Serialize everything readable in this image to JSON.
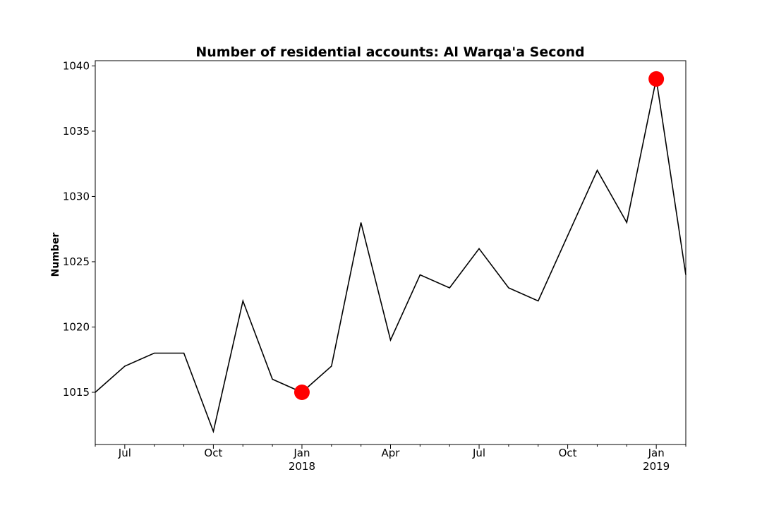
{
  "chart_data": {
    "type": "line",
    "title": "Number of residential accounts: Al Warqa'a Second",
    "xlabel": "",
    "ylabel": "Number",
    "x": [
      "2017-06",
      "2017-07",
      "2017-08",
      "2017-09",
      "2017-10",
      "2017-11",
      "2017-12",
      "2018-01",
      "2018-02",
      "2018-03",
      "2018-04",
      "2018-05",
      "2018-06",
      "2018-07",
      "2018-08",
      "2018-09",
      "2018-10",
      "2018-11",
      "2018-12",
      "2019-01",
      "2019-02"
    ],
    "values": [
      1015,
      1017,
      1018,
      1018,
      1012,
      1022,
      1016,
      1015,
      1017,
      1028,
      1019,
      1024,
      1023,
      1026,
      1023,
      1022,
      1027,
      1032,
      1028,
      1039,
      1024
    ],
    "line_color": "#000000",
    "highlight_color": "#ff0000",
    "highlights": [
      {
        "x": "2018-01",
        "value": 1015
      },
      {
        "x": "2019-01",
        "value": 1039
      }
    ],
    "ylim": [
      1011,
      1040.4
    ],
    "y_ticks": [
      1015,
      1020,
      1025,
      1030,
      1035,
      1040
    ],
    "y_tick_labels": [
      "1015",
      "1020",
      "1025",
      "1030",
      "1035",
      "1040"
    ],
    "x_major_ticks": [
      {
        "x": "2017-07",
        "label": "Jul",
        "sublabel": ""
      },
      {
        "x": "2017-10",
        "label": "Oct",
        "sublabel": ""
      },
      {
        "x": "2018-01",
        "label": "Jan",
        "sublabel": "2018"
      },
      {
        "x": "2018-04",
        "label": "Apr",
        "sublabel": ""
      },
      {
        "x": "2018-07",
        "label": "Jul",
        "sublabel": ""
      },
      {
        "x": "2018-10",
        "label": "Oct",
        "sublabel": ""
      },
      {
        "x": "2019-01",
        "label": "Jan",
        "sublabel": "2019"
      }
    ],
    "grid": false,
    "legend": "none"
  }
}
